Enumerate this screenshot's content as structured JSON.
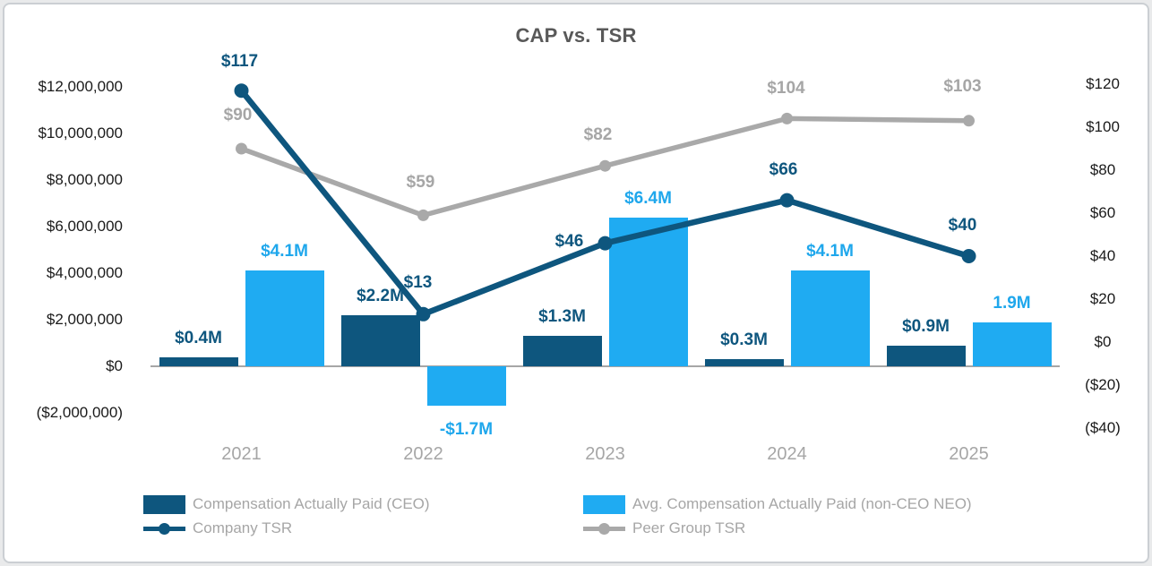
{
  "title": "CAP vs. TSR",
  "colors": {
    "navy": "#0e567e",
    "light_blue": "#1fabf2",
    "gray_line": "#a9a9a9",
    "gray_text": "#a6a6a6",
    "axis_text": "#1a1a1a",
    "title_text": "#595959"
  },
  "chart_data": {
    "type": "combo-bar-line",
    "title": "CAP vs. TSR",
    "categories": [
      "2021",
      "2022",
      "2023",
      "2024",
      "2025"
    ],
    "grid": "off",
    "legend_position": "bottom-two-columns",
    "bar_series": [
      {
        "id": "ceo-cap",
        "name": "Compensation Actually Paid (CEO)",
        "axis": "left",
        "color": "#0e567e",
        "label_color": "#0e567e",
        "values": [
          400000,
          2200000,
          1300000,
          300000,
          900000
        ],
        "labels": [
          "$0.4M",
          "$2.2M",
          "$1.3M",
          "$0.3M",
          "$0.9M"
        ]
      },
      {
        "id": "neo-cap",
        "name": "Avg. Compensation Actually Paid (non-CEO NEO)",
        "axis": "left",
        "color": "#1fabf2",
        "label_color": "#1fa7ec",
        "values": [
          4100000,
          -1700000,
          6400000,
          4100000,
          1900000
        ],
        "labels": [
          "$4.1M",
          "-$1.7M",
          "$6.4M",
          "$4.1M",
          "1.9M"
        ]
      }
    ],
    "line_series": [
      {
        "id": "peer-group-tsr",
        "name": "Peer Group TSR",
        "axis": "right",
        "color": "#a9a9a9",
        "label_color": "#a6a6a6",
        "values": [
          90,
          59,
          82,
          104,
          103
        ],
        "labels": [
          "$90",
          "$59",
          "$82",
          "$104",
          "$103"
        ]
      },
      {
        "id": "company-tsr",
        "name": "Company TSR",
        "axis": "right",
        "color": "#0e567e",
        "label_color": "#0e567e",
        "values": [
          117,
          13,
          46,
          66,
          40
        ],
        "labels": [
          "$117",
          "$13",
          "$46",
          "$66",
          "$40"
        ]
      }
    ],
    "left_axis": {
      "tick_labels": [
        "$12,000,000",
        "$10,000,000",
        "$8,000,000",
        "$6,000,000",
        "$4,000,000",
        "$2,000,000",
        "$0",
        "($2,000,000)"
      ],
      "tick_values": [
        12000000,
        10000000,
        8000000,
        6000000,
        4000000,
        2000000,
        0,
        -2000000
      ],
      "range": [
        -2000000,
        12000000
      ]
    },
    "right_axis": {
      "tick_labels": [
        "$120",
        "$100",
        "$80",
        "$60",
        "$40",
        "$20",
        "$0",
        "($20)",
        "($40)"
      ],
      "tick_values": [
        120,
        100,
        80,
        60,
        40,
        20,
        0,
        -20,
        -40
      ],
      "range": [
        -40,
        120
      ]
    },
    "legend": [
      {
        "id": "ceo-cap",
        "label": "Compensation Actually Paid (CEO)",
        "swatch": "rect",
        "color": "#0e567e",
        "column": 0,
        "row": 0
      },
      {
        "id": "company-tsr",
        "label": "Company TSR",
        "swatch": "line",
        "color": "#0e567e",
        "column": 0,
        "row": 1
      },
      {
        "id": "neo-cap",
        "label": "Avg. Compensation Actually Paid (non-CEO NEO)",
        "swatch": "rect",
        "color": "#1fabf2",
        "column": 1,
        "row": 0
      },
      {
        "id": "peer-group-tsr",
        "label": "Peer Group TSR",
        "swatch": "line",
        "color": "#a9a9a9",
        "column": 1,
        "row": 1
      }
    ]
  }
}
